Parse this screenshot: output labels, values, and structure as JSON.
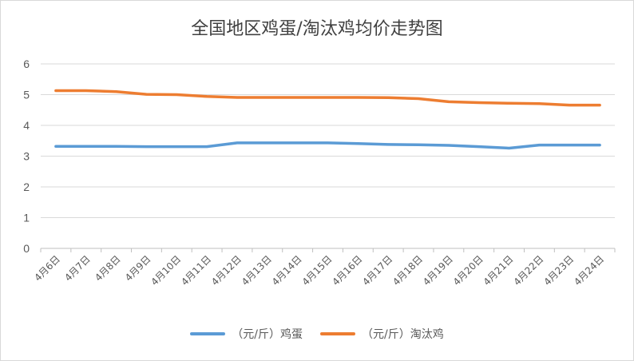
{
  "chart_data": {
    "type": "line",
    "title": "全国地区鸡蛋/淘汰鸡均价走势图",
    "categories": [
      "4月6日",
      "4月7日",
      "4月8日",
      "4月9日",
      "4月10日",
      "4月11日",
      "4月12日",
      "4月13日",
      "4月14日",
      "4月15日",
      "4月16日",
      "4月17日",
      "4月18日",
      "4月19日",
      "4月20日",
      "4月21日",
      "4月22日",
      "4月23日",
      "4月24日"
    ],
    "ylim": [
      0,
      6
    ],
    "yticks": [
      0,
      1,
      2,
      3,
      4,
      5,
      6
    ],
    "grid": true,
    "legend_position": "bottom",
    "series": [
      {
        "name": "（元/斤）鸡蛋",
        "color": "#5b9bd5",
        "values": [
          3.32,
          3.32,
          3.32,
          3.31,
          3.31,
          3.31,
          3.43,
          3.43,
          3.43,
          3.43,
          3.41,
          3.38,
          3.37,
          3.35,
          3.31,
          3.26,
          3.36,
          3.36,
          3.36
        ]
      },
      {
        "name": "（元/斤）淘汰鸡",
        "color": "#ed7d31",
        "values": [
          5.13,
          5.13,
          5.1,
          5.01,
          5.0,
          4.94,
          4.91,
          4.91,
          4.91,
          4.91,
          4.91,
          4.9,
          4.87,
          4.77,
          4.74,
          4.72,
          4.71,
          4.66,
          4.66
        ]
      }
    ]
  }
}
